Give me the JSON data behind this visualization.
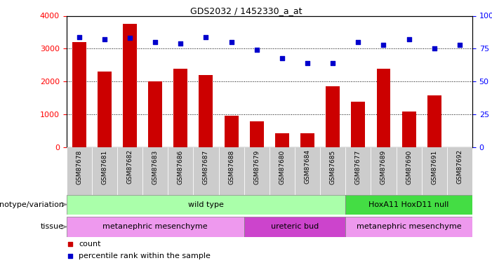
{
  "title": "GDS2032 / 1452330_a_at",
  "samples": [
    "GSM87678",
    "GSM87681",
    "GSM87682",
    "GSM87683",
    "GSM87686",
    "GSM87687",
    "GSM87688",
    "GSM87679",
    "GSM87680",
    "GSM87684",
    "GSM87685",
    "GSM87677",
    "GSM87689",
    "GSM87690",
    "GSM87691",
    "GSM87692"
  ],
  "counts": [
    3200,
    2300,
    3750,
    2000,
    2380,
    2200,
    950,
    790,
    430,
    420,
    1850,
    1380,
    2380,
    1080,
    1580,
    0
  ],
  "percentile_ranks": [
    84,
    82,
    83,
    80,
    79,
    84,
    80,
    74,
    68,
    64,
    64,
    80,
    78,
    82,
    75,
    78
  ],
  "bar_color": "#cc0000",
  "dot_color": "#0000cc",
  "ylim_left": [
    0,
    4000
  ],
  "ylim_right": [
    0,
    100
  ],
  "yticks_left": [
    0,
    1000,
    2000,
    3000,
    4000
  ],
  "yticks_right": [
    0,
    25,
    50,
    75,
    100
  ],
  "genotype_groups": [
    {
      "label": "wild type",
      "start": 0,
      "end": 10,
      "color": "#aaffaa"
    },
    {
      "label": "HoxA11 HoxD11 null",
      "start": 11,
      "end": 15,
      "color": "#44dd44"
    }
  ],
  "tissue_groups": [
    {
      "label": "metanephric mesenchyme",
      "start": 0,
      "end": 6,
      "color": "#ee99ee"
    },
    {
      "label": "ureteric bud",
      "start": 7,
      "end": 10,
      "color": "#cc44cc"
    },
    {
      "label": "metanephric mesenchyme",
      "start": 11,
      "end": 15,
      "color": "#ee99ee"
    }
  ],
  "legend_items": [
    {
      "label": "count",
      "color": "#cc0000"
    },
    {
      "label": "percentile rank within the sample",
      "color": "#0000cc"
    }
  ],
  "genotype_label": "genotype/variation",
  "tissue_label": "tissue",
  "bar_width": 0.55,
  "xlim": [
    -0.5,
    15.5
  ]
}
